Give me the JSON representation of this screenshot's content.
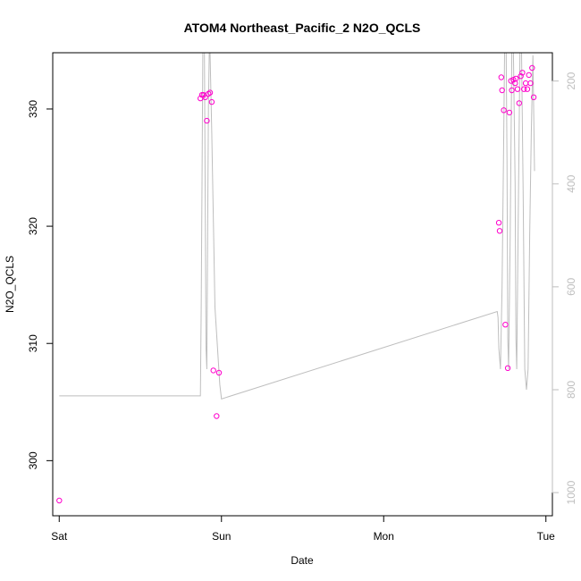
{
  "chart_data": {
    "type": "scatter",
    "title": "ATOM4 Northeast_Pacific_2 N2O_QCLS",
    "xlabel": "Date",
    "ylabel": "N2O_QCLS",
    "x_ticks": [
      {
        "label": "Sat",
        "value": 0
      },
      {
        "label": "Sun",
        "value": 1
      },
      {
        "label": "Mon",
        "value": 2
      },
      {
        "label": "Tue",
        "value": 3
      }
    ],
    "xlim": [
      -0.04,
      3.04
    ],
    "ylim": [
      295.3,
      334.8
    ],
    "y_ticks": [
      300,
      310,
      320,
      330
    ],
    "y2_ticks": [
      200,
      400,
      600,
      800,
      1000
    ],
    "y2lim": [
      1045,
      145
    ],
    "point_color": "#ff00cc",
    "line_color": "#bebebe",
    "points": {
      "x": [
        0.0,
        0.87,
        0.88,
        0.89,
        0.9,
        0.91,
        0.92,
        0.93,
        0.94,
        0.95,
        0.97,
        0.985,
        2.71,
        2.715,
        2.725,
        2.73,
        2.74,
        2.75,
        2.765,
        2.775,
        2.785,
        2.79,
        2.8,
        2.81,
        2.815,
        2.825,
        2.835,
        2.845,
        2.855,
        2.865,
        2.875,
        2.885,
        2.895,
        2.905,
        2.915,
        2.925
      ],
      "y": [
        296.6,
        330.9,
        331.2,
        331.2,
        331.0,
        329.0,
        331.3,
        331.4,
        330.6,
        307.7,
        303.8,
        307.5,
        320.3,
        319.6,
        332.7,
        331.6,
        329.9,
        311.6,
        307.9,
        329.7,
        332.4,
        331.6,
        332.5,
        332.2,
        332.6,
        331.7,
        330.5,
        332.8,
        333.1,
        331.7,
        332.2,
        331.7,
        332.9,
        332.2,
        333.5,
        331.0
      ]
    },
    "altitude_line": {
      "x": [
        0.0,
        0.87,
        0.875,
        0.88,
        0.885,
        0.895,
        0.9,
        0.905,
        0.91,
        0.915,
        0.92,
        0.925,
        0.93,
        0.94,
        0.96,
        0.99,
        1.0,
        2.7,
        2.705,
        2.71,
        2.72,
        2.73,
        2.74,
        2.745,
        2.755,
        2.76,
        2.765,
        2.77,
        2.78,
        2.79,
        2.8,
        2.81,
        2.815,
        2.82,
        2.83,
        2.84,
        2.85,
        2.86,
        2.87,
        2.88,
        2.89,
        2.9,
        2.91,
        2.92,
        2.93
      ],
      "y": [
        812,
        812,
        640,
        400,
        145,
        145,
        430,
        720,
        760,
        500,
        250,
        145,
        145,
        300,
        640,
        790,
        818,
        648,
        660,
        720,
        760,
        600,
        300,
        145,
        145,
        350,
        700,
        760,
        500,
        145,
        145,
        400,
        700,
        760,
        450,
        145,
        145,
        420,
        760,
        800,
        760,
        500,
        300,
        150,
        375
      ]
    }
  }
}
